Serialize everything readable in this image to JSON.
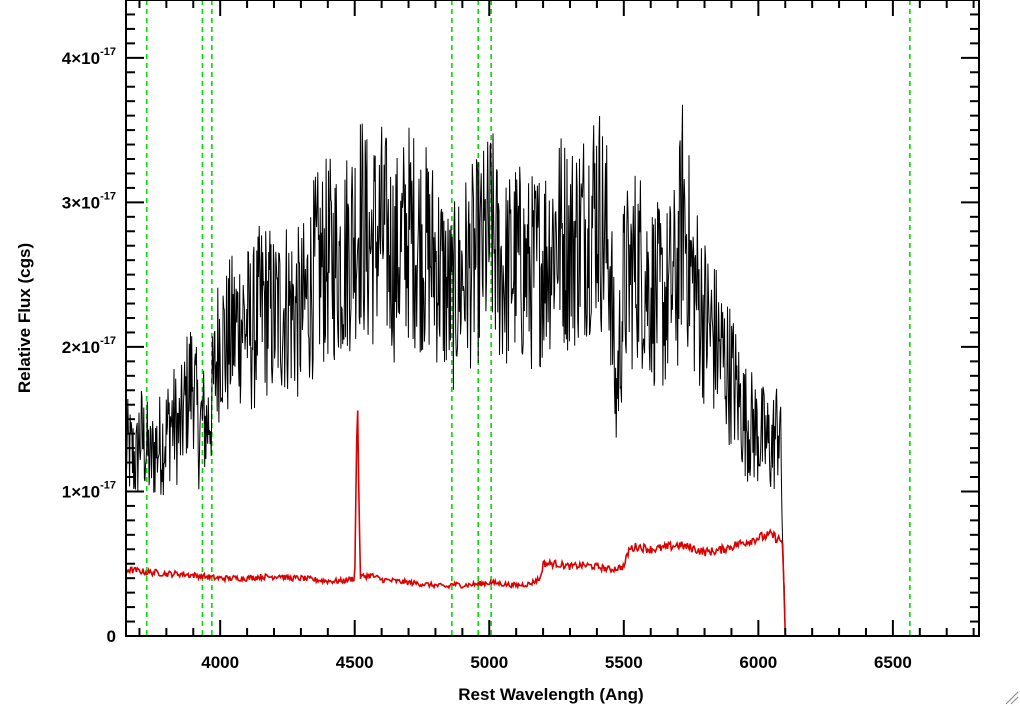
{
  "chart_data": {
    "type": "line",
    "title": "",
    "xlabel": "Rest Wavelength (Ang)",
    "ylabel": "Relative Flux (cgs)",
    "xlim": [
      3650,
      6820
    ],
    "ylim": [
      0,
      4.4e-17
    ],
    "x_ticks": [
      4000,
      4500,
      5000,
      5500,
      6000,
      6500
    ],
    "x_tick_labels": [
      "4000",
      "4500",
      "5000",
      "5500",
      "6000",
      "6500"
    ],
    "y_ticks": [
      0,
      1e-17,
      2e-17,
      3e-17,
      4e-17
    ],
    "y_tick_labels": [
      {
        "plain": "0",
        "mantissa": "",
        "exponent": ""
      },
      {
        "plain": "",
        "mantissa": "1×10",
        "exponent": "-17"
      },
      {
        "plain": "",
        "mantissa": "2×10",
        "exponent": "-17"
      },
      {
        "plain": "",
        "mantissa": "3×10",
        "exponent": "-17"
      },
      {
        "plain": "",
        "mantissa": "4×10",
        "exponent": "-17"
      }
    ],
    "grid": false,
    "legend": "none",
    "vertical_lines": {
      "style": "dashed",
      "color": "#00dd00",
      "x": [
        3727,
        3934,
        3969,
        4861,
        4959,
        5007,
        6563
      ]
    },
    "series": [
      {
        "color": "#000000",
        "x": [
          3650,
          3670,
          3690,
          3700,
          3727,
          3740,
          3760,
          3790,
          3820,
          3850,
          3880,
          3900,
          3920,
          3934,
          3950,
          3969,
          3985,
          4000,
          4020,
          4050,
          4080,
          4120,
          4160,
          4200,
          4250,
          4300,
          4350,
          4400,
          4450,
          4480,
          4500,
          4520,
          4550,
          4600,
          4650,
          4700,
          4750,
          4800,
          4861,
          4900,
          4959,
          4990,
          5007,
          5030,
          5060,
          5100,
          5150,
          5200,
          5250,
          5300,
          5350,
          5400,
          5450,
          5470,
          5500,
          5550,
          5600,
          5650,
          5700,
          5720,
          5750,
          5800,
          5850,
          5900,
          5950,
          6000,
          6050,
          6080,
          6100
        ],
        "y": [
          1.3e-17,
          1.25e-17,
          1.2e-17,
          1.4e-17,
          1.3e-17,
          1.2e-17,
          1.3e-17,
          1.35e-17,
          1.5e-17,
          1.4e-17,
          1.7e-17,
          1.8e-17,
          1.4e-17,
          1.5e-17,
          1.45e-17,
          1.6e-17,
          1.9e-17,
          2.1e-17,
          2e-17,
          2.1e-17,
          2.2e-17,
          2.1e-17,
          2.3e-17,
          2.2e-17,
          2.3e-17,
          2.2e-17,
          2.5e-17,
          2.6e-17,
          2.6e-17,
          2.7e-17,
          2.8e-17,
          2.9e-17,
          2.7e-17,
          2.8e-17,
          2.6e-17,
          2.8e-17,
          2.7e-17,
          2.6e-17,
          2.3e-17,
          2.5e-17,
          2.6e-17,
          2.7e-17,
          2.8e-17,
          2.6e-17,
          2.5e-17,
          2.6e-17,
          2.5e-17,
          2.6e-17,
          2.8e-17,
          2.7e-17,
          2.8e-17,
          3e-17,
          2.6e-17,
          1.6e-17,
          2.4e-17,
          2.6e-17,
          2.4e-17,
          2.3e-17,
          2.5e-17,
          3e-17,
          2.5e-17,
          2.2e-17,
          2e-17,
          1.8e-17,
          1.5e-17,
          1.4e-17,
          1.3e-17,
          1.5e-17,
          0
        ]
      },
      {
        "color": "#dd0000",
        "x": [
          3650,
          3700,
          3730,
          3760,
          3800,
          3850,
          3900,
          3950,
          3990,
          4000,
          4050,
          4100,
          4150,
          4200,
          4220,
          4250,
          4300,
          4350,
          4400,
          4450,
          4500,
          4510,
          4520,
          4560,
          4600,
          4650,
          4700,
          4750,
          4800,
          4850,
          4861,
          4900,
          4959,
          5007,
          5050,
          5100,
          5150,
          5190,
          5200,
          5250,
          5300,
          5350,
          5400,
          5450,
          5500,
          5520,
          5550,
          5600,
          5650,
          5700,
          5750,
          5800,
          5850,
          5900,
          5950,
          6000,
          6050,
          6090,
          6100,
          6200,
          6400,
          6600,
          6820
        ],
        "y": [
          4.6e-18,
          4.5e-18,
          4.4e-18,
          4.4e-18,
          4.3e-18,
          4.3e-18,
          4.2e-18,
          4.1e-18,
          4e-18,
          4e-18,
          4e-18,
          4e-18,
          4.1e-18,
          4.1e-18,
          4.2e-18,
          4e-18,
          4e-18,
          3.9e-18,
          3.8e-18,
          3.8e-18,
          4e-18,
          1.7e-17,
          4.1e-18,
          4.2e-18,
          3.9e-18,
          3.8e-18,
          3.7e-18,
          3.6e-18,
          3.5e-18,
          3.4e-18,
          3.6e-18,
          3.5e-18,
          3.6e-18,
          3.7e-18,
          3.6e-18,
          3.5e-18,
          3.6e-18,
          4e-18,
          5e-18,
          5e-18,
          4.8e-18,
          4.9e-18,
          4.8e-18,
          4.6e-18,
          4.8e-18,
          6e-18,
          6.2e-18,
          6e-18,
          6.1e-18,
          6.3e-18,
          6.1e-18,
          5.8e-18,
          5.9e-18,
          6.2e-18,
          6.5e-18,
          6.8e-18,
          7e-18,
          6.5e-18,
          0,
          0,
          0,
          0,
          0
        ]
      }
    ]
  }
}
